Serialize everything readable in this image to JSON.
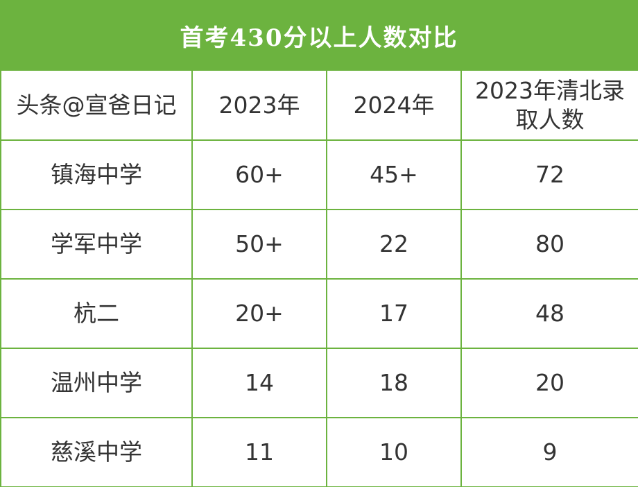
{
  "title": "首考430分以上人数对比",
  "colors": {
    "accent": "#6cb33f",
    "text": "#333333",
    "background": "#ffffff"
  },
  "header": {
    "col1": "头条@宣爸日记",
    "col2": "2023年",
    "col3": "2024年",
    "col4": "2023年清北录取人数"
  },
  "rows": [
    {
      "school": "镇海中学",
      "y2023": "60+",
      "y2024": "45+",
      "qingbei": "72"
    },
    {
      "school": "学军中学",
      "y2023": "50+",
      "y2024": "22",
      "qingbei": "80"
    },
    {
      "school": "杭二",
      "y2023": "20+",
      "y2024": "17",
      "qingbei": "48"
    },
    {
      "school": "温州中学",
      "y2023": "14",
      "y2024": "18",
      "qingbei": "20"
    },
    {
      "school": "慈溪中学",
      "y2023": "11",
      "y2024": "10",
      "qingbei": "9"
    }
  ]
}
